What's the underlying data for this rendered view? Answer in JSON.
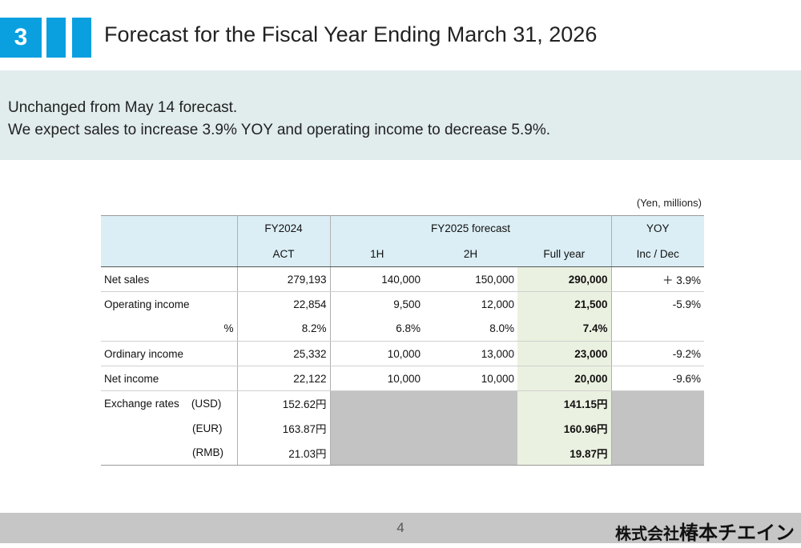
{
  "header": {
    "section_number": "3",
    "title": "Forecast for the Fiscal Year Ending March 31, 2026"
  },
  "summary": {
    "line1": "Unchanged from May 14 forecast.",
    "line2": "We expect sales to increase 3.9% YOY and operating income to decrease 5.9%."
  },
  "table": {
    "unit_note": "(Yen, millions)",
    "header_row1": {
      "fy2024": "FY2024",
      "fy2025": "FY2025 forecast",
      "yoy": "YOY"
    },
    "header_row2": {
      "act": "ACT",
      "h1": "1H",
      "h2": "2H",
      "full": "Full year",
      "incdec": "Inc / Dec"
    },
    "rows": [
      {
        "label": "Net sales",
        "act": "279,193",
        "h1": "140,000",
        "h2": "150,000",
        "full": "290,000",
        "yoy": "＋ 3.9%"
      },
      {
        "label": "Operating income",
        "act": "22,854",
        "h1": "9,500",
        "h2": "12,000",
        "full": "21,500",
        "yoy": "-5.9%"
      },
      {
        "label": "%",
        "act": "8.2%",
        "h1": "6.8%",
        "h2": "8.0%",
        "full": "7.4%",
        "yoy": ""
      },
      {
        "label": "Ordinary income",
        "act": "25,332",
        "h1": "10,000",
        "h2": "13,000",
        "full": "23,000",
        "yoy": "-9.2%"
      },
      {
        "label": "Net income",
        "act": "22,122",
        "h1": "10,000",
        "h2": "10,000",
        "full": "20,000",
        "yoy": "-9.6%"
      }
    ],
    "fx": {
      "label": "Exchange rates",
      "usd": {
        "currency": "(USD)",
        "act": "152.62円",
        "full": "141.15円"
      },
      "eur": {
        "currency": "(EUR)",
        "act": "163.87円",
        "full": "160.96円"
      },
      "rmb": {
        "currency": "(RMB)",
        "act": "21.03円",
        "full": "19.87円"
      }
    }
  },
  "footer": {
    "page_number": "4",
    "company_prefix": "株式会社",
    "company_name": "椿本チエイン"
  },
  "colors": {
    "accent_blue": "#0aa0e0",
    "summary_bg": "#e1eced",
    "table_header_bg": "#dbeef5",
    "full_year_bg": "#ebf1e0",
    "footer_bg": "#c6c6c6"
  }
}
